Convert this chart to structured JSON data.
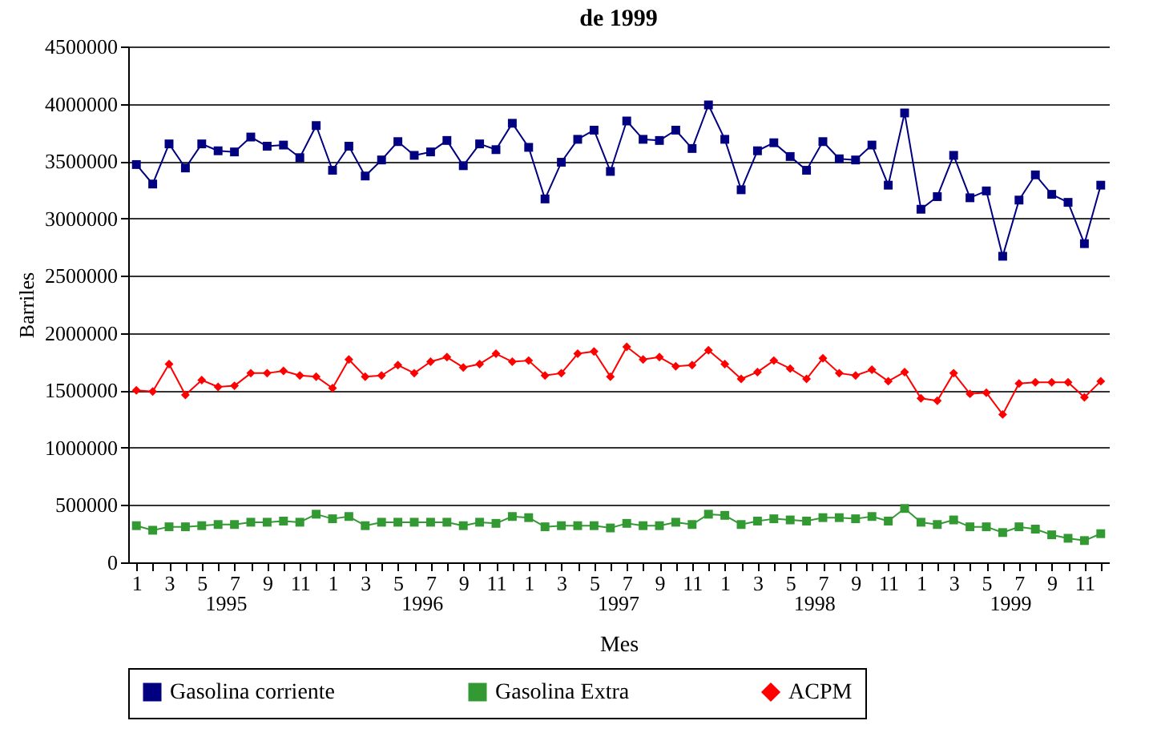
{
  "chart_data": {
    "type": "line",
    "title": "de 1999",
    "xlabel": "Mes",
    "ylabel": "Barriles",
    "categories": [
      "1",
      null,
      "3",
      null,
      "5",
      null,
      "7",
      null,
      "9",
      null,
      "11",
      null,
      "1",
      null,
      "3",
      null,
      "5",
      null,
      "7",
      null,
      "9",
      null,
      "11",
      null,
      "1",
      null,
      "3",
      null,
      "5",
      null,
      "7",
      null,
      "9",
      null,
      "11",
      null,
      "1",
      null,
      "3",
      null,
      "5",
      null,
      "7",
      null,
      "9",
      null,
      "11",
      null,
      "1",
      null,
      "3",
      null,
      "5",
      null,
      "7",
      null,
      "9",
      null,
      "11",
      null
    ],
    "annotations": [
      "1995",
      "1996",
      "1997",
      "1998",
      "1999"
    ],
    "series": [
      {
        "name": "Gasolina corriente",
        "color": "#000080",
        "marker": "square",
        "values": [
          3470000,
          3300000,
          3650000,
          3440000,
          3650000,
          3590000,
          3580000,
          3710000,
          3630000,
          3640000,
          3530000,
          3810000,
          3420000,
          3630000,
          3370000,
          3510000,
          3670000,
          3550000,
          3580000,
          3680000,
          3460000,
          3650000,
          3600000,
          3830000,
          3620000,
          3170000,
          3490000,
          3690000,
          3770000,
          3410000,
          3850000,
          3690000,
          3680000,
          3770000,
          3610000,
          3990000,
          3690000,
          3250000,
          3590000,
          3660000,
          3540000,
          3420000,
          3670000,
          3520000,
          3510000,
          3640000,
          3290000,
          3920000,
          3080000,
          3190000,
          3550000,
          3180000,
          3240000,
          2670000,
          3160000,
          3380000,
          3210000,
          3140000,
          2780000,
          3290000
        ]
      },
      {
        "name": "Gasolina Extra",
        "color": "#339933",
        "marker": "square",
        "values": [
          320000,
          280000,
          310000,
          310000,
          320000,
          330000,
          330000,
          350000,
          350000,
          360000,
          350000,
          420000,
          380000,
          400000,
          320000,
          350000,
          350000,
          350000,
          350000,
          350000,
          320000,
          350000,
          340000,
          400000,
          390000,
          310000,
          320000,
          320000,
          320000,
          300000,
          340000,
          320000,
          320000,
          350000,
          330000,
          420000,
          410000,
          330000,
          360000,
          380000,
          370000,
          360000,
          390000,
          390000,
          380000,
          400000,
          360000,
          470000,
          350000,
          330000,
          370000,
          310000,
          310000,
          260000,
          310000,
          290000,
          240000,
          210000,
          190000,
          250000
        ]
      },
      {
        "name": "ACPM",
        "color": "#ff0000",
        "marker": "diamond",
        "values": [
          1500000,
          1490000,
          1730000,
          1460000,
          1590000,
          1530000,
          1540000,
          1650000,
          1650000,
          1670000,
          1630000,
          1620000,
          1520000,
          1770000,
          1620000,
          1630000,
          1720000,
          1650000,
          1750000,
          1790000,
          1700000,
          1730000,
          1820000,
          1750000,
          1760000,
          1630000,
          1650000,
          1820000,
          1840000,
          1620000,
          1880000,
          1770000,
          1790000,
          1710000,
          1720000,
          1850000,
          1730000,
          1600000,
          1660000,
          1760000,
          1690000,
          1600000,
          1780000,
          1650000,
          1630000,
          1680000,
          1580000,
          1660000,
          1430000,
          1410000,
          1650000,
          1470000,
          1480000,
          1290000,
          1560000,
          1570000,
          1570000,
          1570000,
          1440000,
          1580000
        ]
      }
    ],
    "ylim": [
      0,
      4500000
    ],
    "yticks": [
      0,
      500000,
      1000000,
      1500000,
      2000000,
      2500000,
      3000000,
      3500000,
      4000000,
      4500000
    ],
    "grid": "y",
    "legend": "bottom"
  }
}
